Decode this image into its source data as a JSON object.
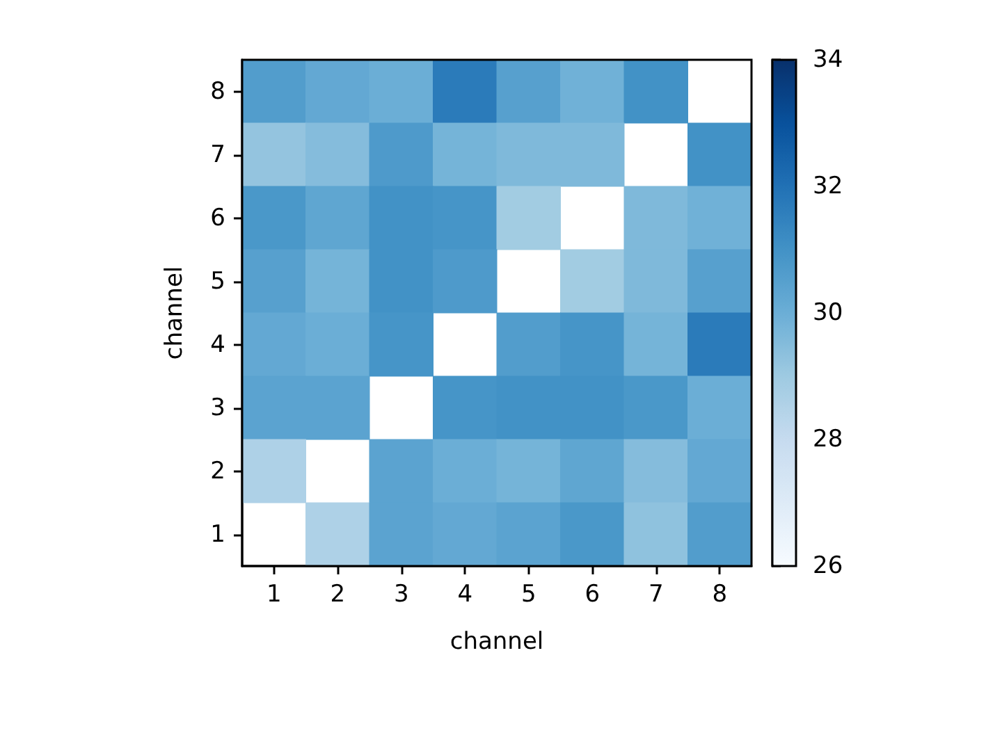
{
  "chart_data": {
    "type": "heatmap",
    "xlabel": "channel",
    "ylabel": "channel",
    "categories": [
      "1",
      "2",
      "3",
      "4",
      "5",
      "6",
      "7",
      "8"
    ],
    "y_categories": [
      "8",
      "7",
      "6",
      "5",
      "4",
      "3",
      "2",
      "1"
    ],
    "cells": [
      [
        30.6,
        30.2,
        30.0,
        31.7,
        30.5,
        29.9,
        31.0,
        null
      ],
      [
        29.2,
        29.5,
        30.7,
        29.8,
        29.6,
        29.6,
        null,
        31.0
      ],
      [
        30.8,
        30.3,
        31.0,
        30.9,
        28.9,
        null,
        29.6,
        29.9
      ],
      [
        30.5,
        29.8,
        31.0,
        30.7,
        null,
        28.9,
        29.6,
        30.5
      ],
      [
        30.2,
        30.0,
        30.9,
        null,
        30.6,
        30.9,
        29.8,
        31.7
      ],
      [
        30.4,
        30.4,
        null,
        30.9,
        31.0,
        31.0,
        30.8,
        30.0
      ],
      [
        28.6,
        null,
        30.4,
        30.0,
        29.8,
        30.3,
        29.5,
        30.2
      ],
      [
        null,
        28.6,
        30.4,
        30.2,
        30.4,
        30.8,
        29.3,
        30.6
      ]
    ],
    "clim": [
      26,
      34
    ],
    "cticks": [
      26,
      28,
      30,
      32,
      34
    ]
  }
}
